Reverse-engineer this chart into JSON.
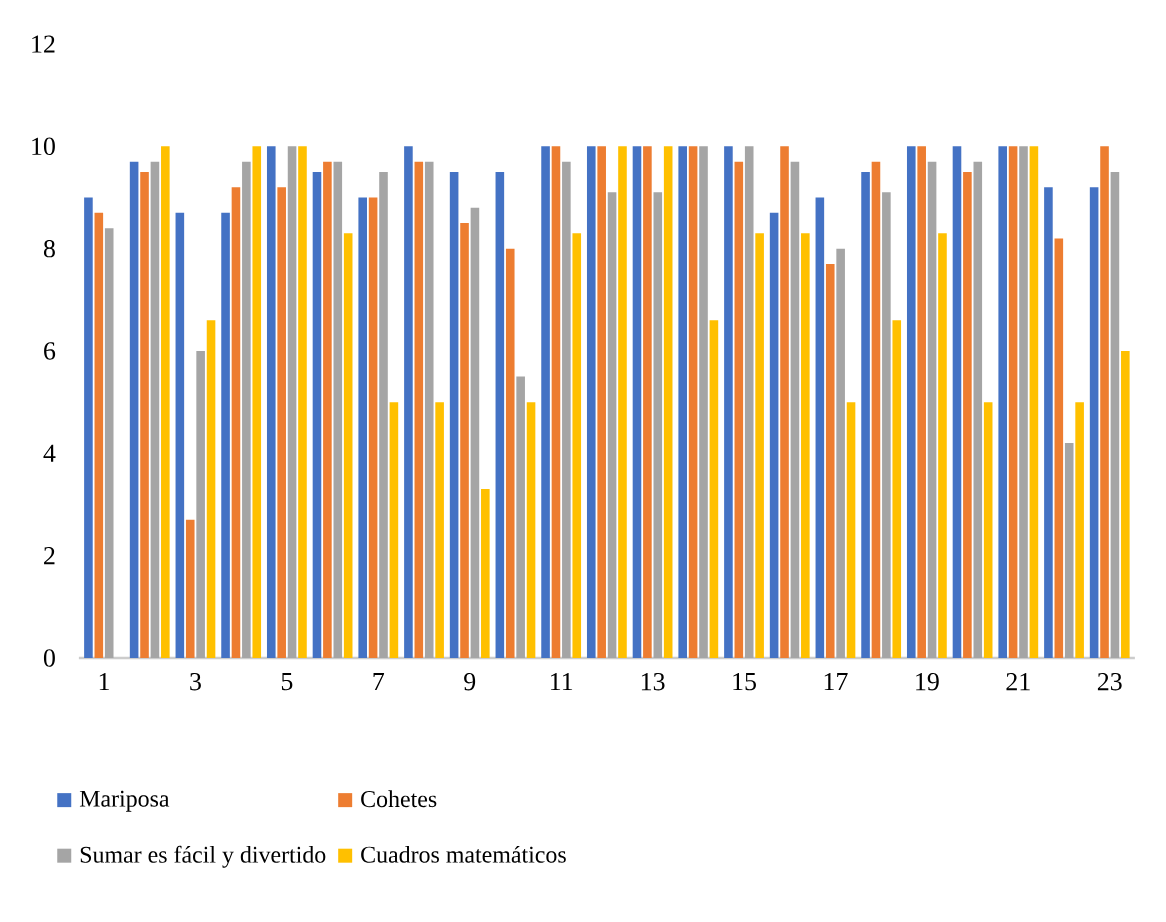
{
  "chart_data": {
    "type": "bar",
    "categories": [
      "1",
      null,
      "3",
      null,
      "5",
      null,
      "7",
      null,
      "9",
      null,
      "11",
      null,
      "13",
      null,
      "15",
      null,
      "17",
      null,
      "19",
      null,
      "21",
      null,
      "23"
    ],
    "series": [
      {
        "name": "Mariposa",
        "color": "#4472c4",
        "values": [
          9.0,
          9.7,
          8.7,
          8.7,
          10,
          9.5,
          9.0,
          10,
          9.5,
          9.5,
          10,
          10,
          10,
          10,
          10,
          8.7,
          9.0,
          9.5,
          10,
          10,
          10,
          9.2,
          9.2
        ]
      },
      {
        "name": "Cohetes",
        "color": "#ed7d31",
        "values": [
          8.7,
          9.5,
          2.7,
          9.2,
          9.2,
          9.7,
          9.0,
          9.7,
          8.5,
          8.0,
          10,
          10,
          10,
          10,
          9.7,
          10,
          7.7,
          9.7,
          10,
          9.5,
          10,
          8.2,
          10
        ]
      },
      {
        "name": "Sumar es fácil y divertido",
        "color": "#a5a5a5",
        "values": [
          8.4,
          9.7,
          6.0,
          9.7,
          10,
          9.7,
          9.5,
          9.7,
          8.8,
          5.5,
          9.7,
          9.1,
          9.1,
          10,
          10,
          9.7,
          8.0,
          9.1,
          9.7,
          9.7,
          10,
          4.2,
          9.5
        ]
      },
      {
        "name": "Cuadros matemáticos",
        "color": "#ffc000",
        "values": [
          0,
          10,
          6.6,
          10,
          10,
          8.3,
          5.0,
          5.0,
          3.3,
          5.0,
          8.3,
          10,
          10,
          6.6,
          8.3,
          8.3,
          5.0,
          6.6,
          8.3,
          5.0,
          10,
          5.0,
          6.0
        ]
      }
    ],
    "ylim": [
      0,
      12
    ],
    "yticks": [
      0,
      2,
      4,
      6,
      8,
      10,
      12
    ],
    "grid": false,
    "legend": "bottom"
  }
}
